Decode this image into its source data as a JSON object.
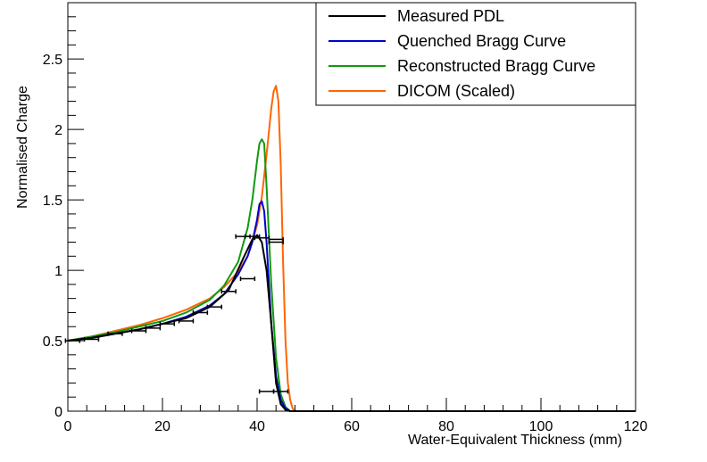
{
  "chart_data": {
    "type": "line",
    "title": "",
    "xlabel": "Water-Equivalent Thickness (mm)",
    "ylabel": "Normalised Charge",
    "xlim": [
      0,
      120
    ],
    "ylim": [
      0,
      2.9
    ],
    "xticks": [
      0,
      20,
      40,
      60,
      80,
      100,
      120
    ],
    "xtick_labels": [
      "0",
      "20",
      "40",
      "60",
      "80",
      "100",
      "120"
    ],
    "yticks": [
      0,
      0.5,
      1,
      1.5,
      2,
      2.5
    ],
    "ytick_labels": [
      "0",
      "0.5",
      "1",
      "1.5",
      "2",
      "2.5"
    ],
    "grid": false,
    "legend_position": "top-right",
    "series": [
      {
        "name": "Measured PDL",
        "color": "#000000",
        "kind": "line",
        "x": [
          0,
          5,
          10,
          15,
          20,
          25,
          30,
          34,
          37,
          39,
          40,
          41,
          42,
          43,
          44,
          45,
          46,
          47,
          48,
          50,
          120
        ],
        "y": [
          0.5,
          0.52,
          0.55,
          0.58,
          0.62,
          0.66,
          0.74,
          0.86,
          1.08,
          1.22,
          1.25,
          1.2,
          1.0,
          0.62,
          0.2,
          0.05,
          0.01,
          0.0,
          0.0,
          0.0,
          0.0
        ]
      },
      {
        "name": "Quenched Bragg Curve",
        "color": "#0000cc",
        "kind": "line",
        "x": [
          0,
          5,
          10,
          15,
          20,
          25,
          30,
          33,
          36,
          38,
          39,
          40,
          40.5,
          41,
          41.5,
          42,
          43,
          44,
          45,
          46,
          47,
          48,
          50,
          120
        ],
        "y": [
          0.5,
          0.52,
          0.55,
          0.58,
          0.62,
          0.67,
          0.75,
          0.83,
          0.97,
          1.1,
          1.2,
          1.36,
          1.47,
          1.49,
          1.42,
          1.2,
          0.62,
          0.25,
          0.08,
          0.02,
          0.0,
          0.0,
          0.0,
          0.0
        ]
      },
      {
        "name": "Reconstructed Bragg Curve",
        "color": "#119911",
        "kind": "line",
        "x": [
          0,
          5,
          10,
          15,
          20,
          25,
          30,
          33,
          36,
          38,
          39,
          40,
          40.5,
          41,
          41.5,
          42,
          43,
          44,
          45,
          46,
          47,
          48,
          50,
          120
        ],
        "y": [
          0.5,
          0.53,
          0.56,
          0.6,
          0.64,
          0.7,
          0.79,
          0.89,
          1.06,
          1.3,
          1.5,
          1.78,
          1.9,
          1.93,
          1.9,
          1.6,
          0.9,
          0.38,
          0.12,
          0.03,
          0.0,
          0.0,
          0.0,
          0.0
        ]
      },
      {
        "name": "DICOM (Scaled)",
        "color": "#ff6600",
        "kind": "line",
        "x": [
          0,
          5,
          10,
          15,
          20,
          25,
          30,
          33,
          36,
          38,
          40,
          41,
          42,
          43,
          43.5,
          44,
          44.5,
          45,
          45.5,
          46,
          46.5,
          47,
          47.5,
          48,
          49,
          50,
          120
        ],
        "y": [
          0.5,
          0.53,
          0.57,
          0.61,
          0.66,
          0.72,
          0.8,
          0.88,
          0.99,
          1.1,
          1.32,
          1.52,
          1.82,
          2.15,
          2.27,
          2.31,
          2.2,
          1.75,
          1.05,
          0.5,
          0.2,
          0.08,
          0.02,
          0.0,
          0.0,
          0.0,
          0.0
        ]
      }
    ],
    "measured_points": {
      "name": "Measured PDL",
      "x": [
        1,
        5,
        10,
        15,
        18,
        21,
        25,
        28,
        31,
        34,
        38,
        41,
        44
      ],
      "y": [
        0.5,
        0.51,
        0.55,
        0.57,
        0.59,
        0.62,
        0.64,
        0.7,
        0.74,
        0.85,
        0.94,
        1.23,
        1.22
      ],
      "xerr": [
        1.5,
        1.5,
        1.5,
        1.5,
        1.5,
        1.5,
        1.5,
        1.5,
        1.5,
        1.5,
        1.5,
        1.5,
        1.5
      ]
    },
    "extra_points": {
      "x": [
        37,
        39,
        44,
        42,
        45
      ],
      "y": [
        1.24,
        1.24,
        1.2,
        0.14,
        0.14
      ],
      "xerr": [
        1.5,
        1.5,
        1.5,
        1.5,
        1.5
      ]
    }
  }
}
